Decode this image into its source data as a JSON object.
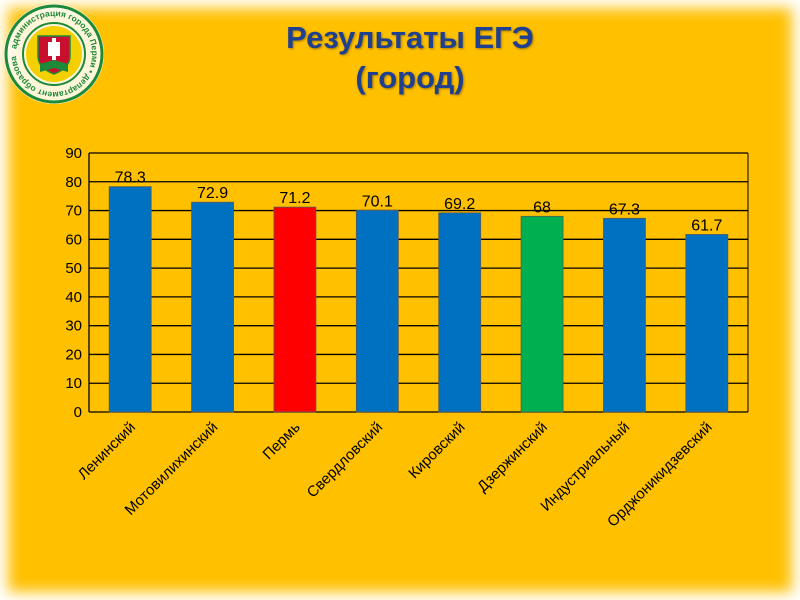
{
  "title": {
    "line1": "Результаты ЕГЭ",
    "line2": "(город)"
  },
  "logo": {
    "ring_text": "администрация города Перми • департамент образования",
    "colors": {
      "ring": "#1d8a3a",
      "inner": "#c8102e",
      "accent": "#f5d000"
    }
  },
  "colors": {
    "background": "#ffc000",
    "title": "#1f3f8f",
    "bar_default": "#0070c0",
    "bar_highlight": "#ff0000",
    "bar_dzerzhinsky": "#00b050",
    "grid": "#000000"
  },
  "chart_data": {
    "type": "bar",
    "title": "Результаты ЕГЭ (город)",
    "categories": [
      "Ленинский",
      "Мотовилихинский",
      "Пермь",
      "Свердловский",
      "Кировский",
      "Дзержинский",
      "Индустриальный",
      "Орджоникидзевский"
    ],
    "values": [
      78.3,
      72.9,
      71.2,
      70.1,
      69.2,
      68,
      67.3,
      61.7
    ],
    "value_labels": [
      "78.3",
      "72.9",
      "71.2",
      "70.1",
      "69.2",
      "68",
      "67.3",
      "61.7"
    ],
    "bar_colors": [
      "#0070c0",
      "#0070c0",
      "#ff0000",
      "#0070c0",
      "#0070c0",
      "#00b050",
      "#0070c0",
      "#0070c0"
    ],
    "ylim": [
      0,
      90
    ],
    "yticks": [
      "0",
      "10",
      "20",
      "30",
      "40",
      "50",
      "60",
      "70",
      "80",
      "90"
    ],
    "grid": true,
    "legend": "none"
  }
}
